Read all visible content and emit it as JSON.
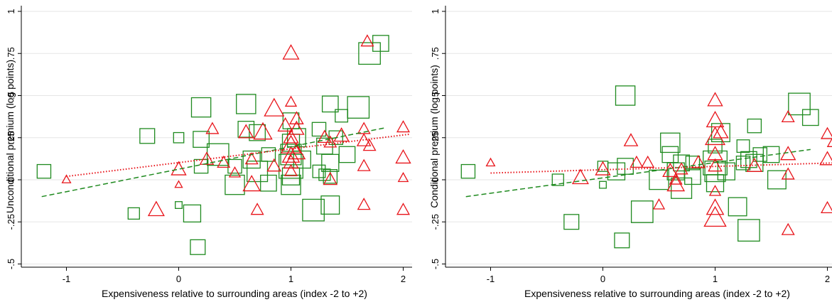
{
  "colors": {
    "green": "#1f8a1f",
    "red": "#e8141a",
    "axis": "#000000",
    "grid": "#e6e6e6"
  },
  "chart_data": [
    {
      "type": "scatter",
      "xlabel": "Expensiveness relative to surrounding areas (index -2 to +2)",
      "ylabel": "Unconditional premium (log points)",
      "xlim": [
        -1.25,
        2.05
      ],
      "ylim": [
        -0.52,
        1.02
      ],
      "xticks": [
        {
          "v": -1,
          "label": "-1"
        },
        {
          "v": 0,
          "label": "0"
        },
        {
          "v": 1,
          "label": "1"
        },
        {
          "v": 2,
          "label": "2"
        }
      ],
      "yticks": [
        {
          "v": -0.5,
          "label": "-.5"
        },
        {
          "v": -0.25,
          "label": "-.25"
        },
        {
          "v": 0,
          "label": "0"
        },
        {
          "v": 0.25,
          "label": ".25"
        },
        {
          "v": 0.5,
          "label": ".5"
        },
        {
          "v": 0.75,
          "label": ".75"
        },
        {
          "v": 1,
          "label": "1"
        }
      ],
      "grid": true,
      "squares": [
        [
          -1.2,
          0.05,
          0.6
        ],
        [
          -0.4,
          -0.2,
          0.5
        ],
        [
          -0.28,
          0.26,
          0.65
        ],
        [
          0,
          0.25,
          0.45
        ],
        [
          0,
          -0.15,
          0.3
        ],
        [
          0.12,
          -0.2,
          0.75
        ],
        [
          0.2,
          0.24,
          0.7
        ],
        [
          0.2,
          0.43,
          0.85
        ],
        [
          0.2,
          0.08,
          0.6
        ],
        [
          0.17,
          -0.4,
          0.65
        ],
        [
          0.35,
          0.15,
          0.95
        ],
        [
          0.5,
          0.08,
          0.6
        ],
        [
          0.5,
          -0.03,
          0.85
        ],
        [
          0.6,
          0.45,
          0.85
        ],
        [
          0.6,
          0.3,
          0.7
        ],
        [
          0.65,
          0.12,
          0.75
        ],
        [
          0.7,
          0.28,
          0.7
        ],
        [
          0.7,
          0.05,
          0.9
        ],
        [
          0.8,
          -0.02,
          0.7
        ],
        [
          0.8,
          0.15,
          0.6
        ],
        [
          1.0,
          0.35,
          0.7
        ],
        [
          1.0,
          0.22,
          0.75
        ],
        [
          1.0,
          0.08,
          1.05
        ],
        [
          1.0,
          0.15,
          0.9
        ],
        [
          1.0,
          0.02,
          0.75
        ],
        [
          1.05,
          0.25,
          0.8
        ],
        [
          1.1,
          0.12,
          0.75
        ],
        [
          1.25,
          0.3,
          0.6
        ],
        [
          1.25,
          0.05,
          0.55
        ],
        [
          1.3,
          0.2,
          0.7
        ],
        [
          1.3,
          0.03,
          0.5
        ],
        [
          1.35,
          0.45,
          0.7
        ],
        [
          1.35,
          0.1,
          0.75
        ],
        [
          1.4,
          0.25,
          0.6
        ],
        [
          1.5,
          0.15,
          0.7
        ],
        [
          1.6,
          0.43,
          0.95
        ],
        [
          1.7,
          0.75,
          0.95
        ],
        [
          1.8,
          0.81,
          0.7
        ],
        [
          1.2,
          -0.18,
          0.95
        ],
        [
          1.35,
          -0.15,
          0.8
        ],
        [
          1.35,
          0.02,
          0.6
        ],
        [
          1.45,
          0.38,
          0.55
        ],
        [
          1.0,
          -0.03,
          0.85
        ]
      ],
      "triangles": [
        [
          -1.0,
          0.0,
          0.35
        ],
        [
          0,
          0.06,
          0.6
        ],
        [
          0,
          -0.03,
          0.3
        ],
        [
          -0.2,
          -0.18,
          0.65
        ],
        [
          0.3,
          0.3,
          0.5
        ],
        [
          0.25,
          0.12,
          0.55
        ],
        [
          0.4,
          0.1,
          0.5
        ],
        [
          0.5,
          0.04,
          0.45
        ],
        [
          0.6,
          0.28,
          0.6
        ],
        [
          0.65,
          0.12,
          0.5
        ],
        [
          0.65,
          -0.03,
          0.7
        ],
        [
          0.7,
          -0.18,
          0.5
        ],
        [
          0.75,
          0.28,
          0.75
        ],
        [
          0.85,
          0.42,
          0.8
        ],
        [
          0.85,
          0.08,
          0.55
        ],
        [
          0.95,
          0.32,
          0.6
        ],
        [
          1.0,
          0.75,
          0.65
        ],
        [
          1.0,
          0.46,
          0.45
        ],
        [
          1.0,
          0.25,
          0.6
        ],
        [
          1.0,
          0.2,
          0.8
        ],
        [
          1.0,
          0.14,
          0.7
        ],
        [
          1.0,
          0.1,
          0.6
        ],
        [
          1.0,
          0.05,
          0.5
        ],
        [
          1.05,
          0.3,
          0.6
        ],
        [
          1.05,
          0.16,
          0.7
        ],
        [
          1.05,
          0.36,
          0.55
        ],
        [
          1.3,
          0.25,
          0.55
        ],
        [
          1.35,
          0.0,
          0.55
        ],
        [
          1.35,
          0.22,
          0.5
        ],
        [
          1.45,
          0.26,
          0.6
        ],
        [
          1.65,
          0.3,
          0.5
        ],
        [
          1.65,
          0.23,
          0.55
        ],
        [
          1.65,
          0.08,
          0.5
        ],
        [
          1.65,
          -0.15,
          0.5
        ],
        [
          1.68,
          0.82,
          0.5
        ],
        [
          2.0,
          0.31,
          0.5
        ],
        [
          2.0,
          0.13,
          0.6
        ],
        [
          2.0,
          0.01,
          0.4
        ],
        [
          2.0,
          -0.18,
          0.5
        ],
        [
          1.7,
          0.2,
          0.5
        ]
      ],
      "fit_dashed": [
        [
          -1.22,
          -0.1
        ],
        [
          1.85,
          0.31
        ]
      ],
      "fit_dotted": [
        [
          -1.0,
          0.02
        ],
        [
          2.05,
          0.27
        ]
      ]
    },
    {
      "type": "scatter",
      "xlabel": "Expensiveness relative to surrounding areas (index -2 to +2)",
      "ylabel": "Conditional premium (log points)",
      "xlim": [
        -1.25,
        2.05
      ],
      "ylim": [
        -0.52,
        1.02
      ],
      "xticks": [
        {
          "v": -1,
          "label": "-1"
        },
        {
          "v": 0,
          "label": "0"
        },
        {
          "v": 1,
          "label": "1"
        },
        {
          "v": 2,
          "label": "2"
        }
      ],
      "yticks": [
        {
          "v": -0.5,
          "label": "-.5"
        },
        {
          "v": -0.25,
          "label": "-.25"
        },
        {
          "v": 0,
          "label": "0"
        },
        {
          "v": 0.25,
          "label": ".25"
        },
        {
          "v": 0.5,
          "label": ".5"
        },
        {
          "v": 0.75,
          "label": ".75"
        },
        {
          "v": 1,
          "label": "1"
        }
      ],
      "grid": true,
      "squares": [
        [
          -1.2,
          0.05,
          0.6
        ],
        [
          -0.4,
          0.0,
          0.5
        ],
        [
          -0.28,
          -0.25,
          0.65
        ],
        [
          0,
          0.08,
          0.45
        ],
        [
          0,
          -0.03,
          0.3
        ],
        [
          0.12,
          0.05,
          0.75
        ],
        [
          0.2,
          0.08,
          0.7
        ],
        [
          0.2,
          0.5,
          0.85
        ],
        [
          0.17,
          -0.36,
          0.65
        ],
        [
          0.35,
          -0.19,
          0.95
        ],
        [
          0.5,
          0.0,
          0.85
        ],
        [
          0.6,
          0.22,
          0.85
        ],
        [
          0.6,
          0.15,
          0.7
        ],
        [
          0.65,
          0.05,
          0.75
        ],
        [
          0.7,
          0.1,
          0.7
        ],
        [
          0.7,
          -0.05,
          0.9
        ],
        [
          0.8,
          0.02,
          0.7
        ],
        [
          0.8,
          0.1,
          0.6
        ],
        [
          1.0,
          0.1,
          1.05
        ],
        [
          1.0,
          0.05,
          0.9
        ],
        [
          1.0,
          -0.02,
          0.75
        ],
        [
          1.05,
          0.28,
          0.8
        ],
        [
          1.1,
          0.05,
          0.75
        ],
        [
          1.25,
          0.1,
          0.6
        ],
        [
          1.25,
          0.2,
          0.55
        ],
        [
          1.3,
          0.12,
          0.7
        ],
        [
          1.3,
          -0.3,
          0.95
        ],
        [
          1.35,
          0.32,
          0.6
        ],
        [
          1.35,
          0.1,
          0.75
        ],
        [
          1.4,
          0.15,
          0.6
        ],
        [
          1.5,
          0.15,
          0.7
        ],
        [
          1.55,
          0.0,
          0.8
        ],
        [
          1.75,
          0.45,
          0.95
        ],
        [
          1.85,
          0.37,
          0.7
        ],
        [
          1.2,
          -0.16,
          0.8
        ],
        [
          1.0,
          0.2,
          0.6
        ]
      ],
      "triangles": [
        [
          -1.0,
          0.1,
          0.35
        ],
        [
          0,
          0.06,
          0.6
        ],
        [
          -0.2,
          0.01,
          0.65
        ],
        [
          0.25,
          0.23,
          0.55
        ],
        [
          0.3,
          0.1,
          0.5
        ],
        [
          0.4,
          0.1,
          0.5
        ],
        [
          0.5,
          -0.15,
          0.45
        ],
        [
          0.6,
          0.05,
          0.6
        ],
        [
          0.65,
          0.0,
          0.5
        ],
        [
          0.65,
          -0.03,
          0.7
        ],
        [
          0.7,
          0.06,
          0.5
        ],
        [
          1.0,
          0.47,
          0.6
        ],
        [
          1.0,
          0.35,
          0.7
        ],
        [
          1.0,
          0.25,
          0.8
        ],
        [
          1.0,
          0.15,
          0.6
        ],
        [
          1.0,
          0.08,
          0.55
        ],
        [
          1.0,
          -0.07,
          0.45
        ],
        [
          1.0,
          -0.17,
          0.7
        ],
        [
          1.0,
          -0.23,
          0.9
        ],
        [
          1.35,
          0.08,
          0.6
        ],
        [
          1.65,
          0.37,
          0.5
        ],
        [
          1.65,
          0.15,
          0.6
        ],
        [
          1.65,
          0.03,
          0.5
        ],
        [
          1.65,
          -0.3,
          0.5
        ],
        [
          2.0,
          0.27,
          0.5
        ],
        [
          2.0,
          0.12,
          0.6
        ],
        [
          2.0,
          -0.17,
          0.5
        ],
        [
          1.05,
          0.28,
          0.6
        ],
        [
          0.85,
          0.1,
          0.55
        ],
        [
          2.05,
          0.22,
          0.45
        ]
      ],
      "fit_dashed": [
        [
          -1.22,
          -0.1
        ],
        [
          1.85,
          0.18
        ]
      ],
      "fit_dotted": [
        [
          -1.0,
          0.04
        ],
        [
          2.05,
          0.1
        ]
      ]
    }
  ]
}
